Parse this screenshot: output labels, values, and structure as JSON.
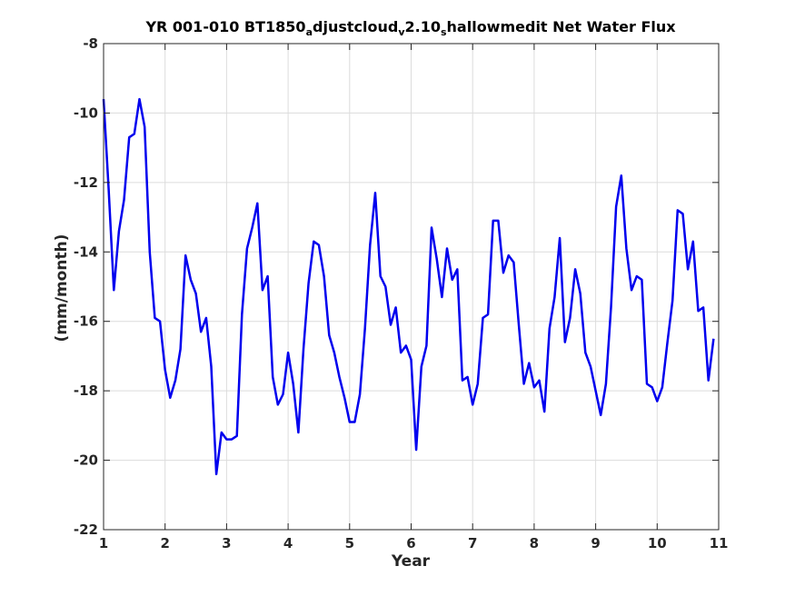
{
  "chart_data": {
    "type": "line",
    "title": {
      "segments": [
        {
          "text": "YR 001-010 BT1850",
          "sub": false
        },
        {
          "text": "a",
          "sub": true
        },
        {
          "text": "djustcloud",
          "sub": false
        },
        {
          "text": "v",
          "sub": true
        },
        {
          "text": "2.10",
          "sub": false
        },
        {
          "text": "s",
          "sub": true
        },
        {
          "text": "hallowmedit Net Water Flux",
          "sub": false
        }
      ]
    },
    "xlabel": "Year",
    "ylabel": "(mm/month)",
    "xlim": [
      1,
      11
    ],
    "ylim": [
      -22,
      -8
    ],
    "xticks": [
      1,
      2,
      3,
      4,
      5,
      6,
      7,
      8,
      9,
      10,
      11
    ],
    "yticks": [
      -22,
      -20,
      -18,
      -16,
      -14,
      -12,
      -10,
      -8
    ],
    "grid": true,
    "colors": {
      "line": "#0000ee",
      "grid": "#dcdcdc",
      "axis": "#262626"
    },
    "series": [
      {
        "color": "#0000ee",
        "x": [
          1.0,
          1.083,
          1.167,
          1.25,
          1.333,
          1.417,
          1.5,
          1.583,
          1.667,
          1.75,
          1.833,
          1.917,
          2.0,
          2.083,
          2.167,
          2.25,
          2.333,
          2.417,
          2.5,
          2.583,
          2.667,
          2.75,
          2.833,
          2.917,
          3.0,
          3.083,
          3.167,
          3.25,
          3.333,
          3.417,
          3.5,
          3.583,
          3.667,
          3.75,
          3.833,
          3.917,
          4.0,
          4.083,
          4.167,
          4.25,
          4.333,
          4.417,
          4.5,
          4.583,
          4.667,
          4.75,
          4.833,
          4.917,
          5.0,
          5.083,
          5.167,
          5.25,
          5.333,
          5.417,
          5.5,
          5.583,
          5.667,
          5.75,
          5.833,
          5.917,
          6.0,
          6.083,
          6.167,
          6.25,
          6.333,
          6.417,
          6.5,
          6.583,
          6.667,
          6.75,
          6.833,
          6.917,
          7.0,
          7.083,
          7.167,
          7.25,
          7.333,
          7.417,
          7.5,
          7.583,
          7.667,
          7.75,
          7.833,
          7.917,
          8.0,
          8.083,
          8.167,
          8.25,
          8.333,
          8.417,
          8.5,
          8.583,
          8.667,
          8.75,
          8.833,
          8.917,
          9.0,
          9.083,
          9.167,
          9.25,
          9.333,
          9.417,
          9.5,
          9.583,
          9.667,
          9.75,
          9.833,
          9.917,
          10.0,
          10.083,
          10.167,
          10.25,
          10.333,
          10.417,
          10.5,
          10.583,
          10.667,
          10.75,
          10.833,
          10.917
        ],
        "y": [
          -9.6,
          -12.2,
          -15.1,
          -13.4,
          -12.5,
          -10.7,
          -10.6,
          -9.6,
          -10.4,
          -14.0,
          -15.9,
          -16.0,
          -17.4,
          -18.2,
          -17.7,
          -16.8,
          -14.1,
          -14.8,
          -15.2,
          -16.3,
          -15.9,
          -17.3,
          -20.4,
          -19.2,
          -19.4,
          -19.4,
          -19.3,
          -15.8,
          -13.9,
          -13.3,
          -12.6,
          -15.1,
          -14.7,
          -17.6,
          -18.4,
          -18.1,
          -16.9,
          -17.8,
          -19.2,
          -16.8,
          -14.9,
          -13.7,
          -13.8,
          -14.7,
          -16.4,
          -16.9,
          -17.6,
          -18.2,
          -18.9,
          -18.9,
          -18.1,
          -16.2,
          -13.8,
          -12.3,
          -14.7,
          -15.0,
          -16.1,
          -15.6,
          -16.9,
          -16.7,
          -17.1,
          -19.7,
          -17.3,
          -16.7,
          -13.3,
          -14.2,
          -15.3,
          -13.9,
          -14.8,
          -14.5,
          -17.7,
          -17.6,
          -18.4,
          -17.8,
          -15.9,
          -15.8,
          -13.1,
          -13.1,
          -14.6,
          -14.1,
          -14.3,
          -16.1,
          -17.8,
          -17.2,
          -17.9,
          -17.7,
          -18.6,
          -16.2,
          -15.3,
          -13.6,
          -16.6,
          -15.9,
          -14.5,
          -15.2,
          -16.9,
          -17.3,
          -18.0,
          -18.7,
          -17.8,
          -15.6,
          -12.7,
          -11.8,
          -13.9,
          -15.1,
          -14.7,
          -14.8,
          -17.8,
          -17.9,
          -18.3,
          -17.9,
          -16.6,
          -15.4,
          -12.8,
          -12.9,
          -14.5,
          -13.7,
          -15.7,
          -15.6,
          -17.7,
          -16.5
        ]
      }
    ]
  }
}
